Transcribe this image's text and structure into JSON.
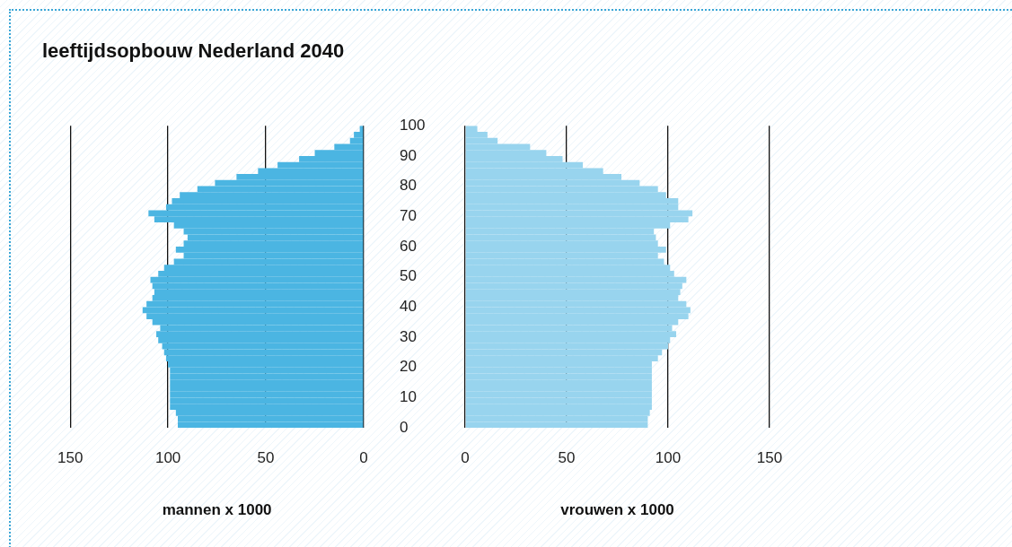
{
  "chart_data": [
    {
      "type": "histogram",
      "orientation": "horizontal",
      "title": "leeftijdsopbouw Nederland 2040",
      "xlabel": "mannen x 1000",
      "color": "#4bb5e2",
      "bins": [
        0,
        2,
        4,
        6,
        8,
        10,
        12,
        14,
        16,
        18,
        20,
        22,
        24,
        26,
        28,
        30,
        32,
        34,
        36,
        38,
        40,
        42,
        44,
        46,
        48,
        50,
        52,
        54,
        56,
        58,
        60,
        62,
        64,
        66,
        68,
        70,
        72,
        74,
        76,
        78,
        80,
        82,
        84,
        86,
        88,
        90,
        92,
        94,
        96,
        98,
        100
      ],
      "values": [
        95,
        95,
        96,
        99,
        99,
        99,
        99,
        99,
        99,
        99,
        100,
        101,
        102,
        103,
        105,
        106,
        104,
        108,
        111,
        113,
        111,
        108,
        107,
        108,
        109,
        105,
        102,
        97,
        92,
        96,
        92,
        90,
        92,
        97,
        107,
        110,
        101,
        98,
        94,
        85,
        76,
        65,
        54,
        44,
        33,
        25,
        15,
        7,
        5,
        2
      ],
      "xlim": [
        150,
        0
      ],
      "xticks": [
        150,
        100,
        50,
        0
      ],
      "ylim": [
        0,
        100
      ],
      "yticks": [
        0,
        10,
        20,
        30,
        40,
        50,
        60,
        70,
        80,
        90,
        100
      ],
      "grid": "x"
    },
    {
      "type": "histogram",
      "orientation": "horizontal",
      "xlabel": "vrouwen x 1000",
      "color": "#98d4ee",
      "bins": [
        0,
        2,
        4,
        6,
        8,
        10,
        12,
        14,
        16,
        18,
        20,
        22,
        24,
        26,
        28,
        30,
        32,
        34,
        36,
        38,
        40,
        42,
        44,
        46,
        48,
        50,
        52,
        54,
        56,
        58,
        60,
        62,
        64,
        66,
        68,
        70,
        72,
        74,
        76,
        78,
        80,
        82,
        84,
        86,
        88,
        90,
        92,
        94,
        96,
        98,
        100
      ],
      "values": [
        90,
        90,
        91,
        92,
        92,
        92,
        92,
        92,
        92,
        92,
        92,
        95,
        97,
        100,
        101,
        104,
        102,
        105,
        110,
        111,
        109,
        105,
        106,
        107,
        109,
        103,
        101,
        98,
        95,
        99,
        95,
        94,
        93,
        101,
        110,
        112,
        105,
        105,
        99,
        95,
        86,
        77,
        68,
        58,
        48,
        40,
        32,
        16,
        11,
        6
      ],
      "xlim": [
        0,
        150
      ],
      "xticks": [
        0,
        50,
        100,
        150
      ],
      "ylim": [
        0,
        100
      ],
      "yticks": [
        0,
        10,
        20,
        30,
        40,
        50,
        60,
        70,
        80,
        90,
        100
      ],
      "grid": "x",
      "tick_labels": "x"
    }
  ]
}
